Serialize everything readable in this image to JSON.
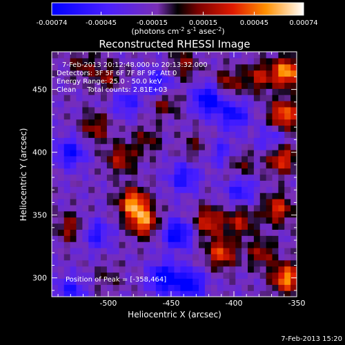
{
  "chart_data": {
    "type": "heatmap",
    "title": "Reconstructed RHESSI Image",
    "xlabel": "Heliocentric X (arcsec)",
    "ylabel": "Heliocentric Y (arcsec)",
    "xlim": [
      -545,
      -350
    ],
    "ylim": [
      285,
      480
    ],
    "x_ticks": [
      "-500",
      "-450",
      "-400",
      "-350"
    ],
    "x_tick_values": [
      -500,
      -450,
      -400,
      -350
    ],
    "y_ticks": [
      "300",
      "350",
      "400",
      "450"
    ],
    "y_tick_values": [
      300,
      350,
      400,
      450
    ],
    "colorbar": {
      "ticks": [
        "-0.00074",
        "-0.00045",
        "-0.00015",
        "0.00015",
        "0.00045",
        "0.00074"
      ],
      "tick_values": [
        -0.00074,
        -0.00045,
        -0.00015,
        0.00015,
        0.00045,
        0.00074
      ],
      "range": [
        -0.00074,
        0.00074
      ]
    },
    "annotations": [
      "7-Feb-2013 20:12:48.000 to 20:13:32.000",
      "Detectors: 3F 5F 6F 7F 8F 9F, Att 0",
      "Energy Range: 25.0 - 50.0 keV",
      "Clean     Total counts: 2.81E+03"
    ],
    "peak_label": "Position of Peak = [-358,464]",
    "footer_date": "7-Feb-2013 15:20",
    "hotspots": [
      {
        "x": -358,
        "y": 464,
        "v": 0.00074
      },
      {
        "x": -360,
        "y": 430,
        "v": 0.00065
      },
      {
        "x": -362,
        "y": 395,
        "v": 0.00055
      },
      {
        "x": -365,
        "y": 355,
        "v": 0.0005
      },
      {
        "x": -358,
        "y": 300,
        "v": 0.0007
      },
      {
        "x": -380,
        "y": 460,
        "v": 0.0004
      },
      {
        "x": -405,
        "y": 455,
        "v": 0.00035
      },
      {
        "x": -480,
        "y": 360,
        "v": 0.0007
      },
      {
        "x": -472,
        "y": 345,
        "v": 0.00065
      },
      {
        "x": -490,
        "y": 395,
        "v": 0.0004
      },
      {
        "x": -510,
        "y": 420,
        "v": 0.00035
      },
      {
        "x": -420,
        "y": 345,
        "v": 0.0005
      },
      {
        "x": -410,
        "y": 320,
        "v": 0.00055
      },
      {
        "x": -395,
        "y": 345,
        "v": 0.0004
      },
      {
        "x": -455,
        "y": 440,
        "v": 0.0003
      },
      {
        "x": -530,
        "y": 340,
        "v": 0.00035
      },
      {
        "x": -500,
        "y": 460,
        "v": 0.0003
      },
      {
        "x": -520,
        "y": 470,
        "v": 0.00025
      },
      {
        "x": -440,
        "y": 470,
        "v": 0.0003
      },
      {
        "x": -395,
        "y": 390,
        "v": 0.00025
      },
      {
        "x": -430,
        "y": 405,
        "v": 0.0002
      },
      {
        "x": -470,
        "y": 410,
        "v": 0.00025
      },
      {
        "x": -500,
        "y": 300,
        "v": 0.00015
      },
      {
        "x": -378,
        "y": 320,
        "v": 0.00035
      },
      {
        "x": -460,
        "y": 455,
        "v": -0.0004
      },
      {
        "x": -420,
        "y": 442,
        "v": -0.0007
      },
      {
        "x": -400,
        "y": 430,
        "v": -0.0005
      },
      {
        "x": -445,
        "y": 335,
        "v": -0.0006
      },
      {
        "x": -455,
        "y": 300,
        "v": -0.0007
      },
      {
        "x": -435,
        "y": 295,
        "v": -0.0006
      },
      {
        "x": -530,
        "y": 290,
        "v": -0.0004
      },
      {
        "x": -530,
        "y": 400,
        "v": -0.0005
      },
      {
        "x": -395,
        "y": 370,
        "v": -0.0004
      },
      {
        "x": -440,
        "y": 380,
        "v": -0.00045
      },
      {
        "x": -510,
        "y": 335,
        "v": -0.0004
      },
      {
        "x": -370,
        "y": 410,
        "v": -0.0003
      },
      {
        "x": -485,
        "y": 440,
        "v": -0.00035
      },
      {
        "x": -410,
        "y": 400,
        "v": -0.0003
      }
    ]
  }
}
